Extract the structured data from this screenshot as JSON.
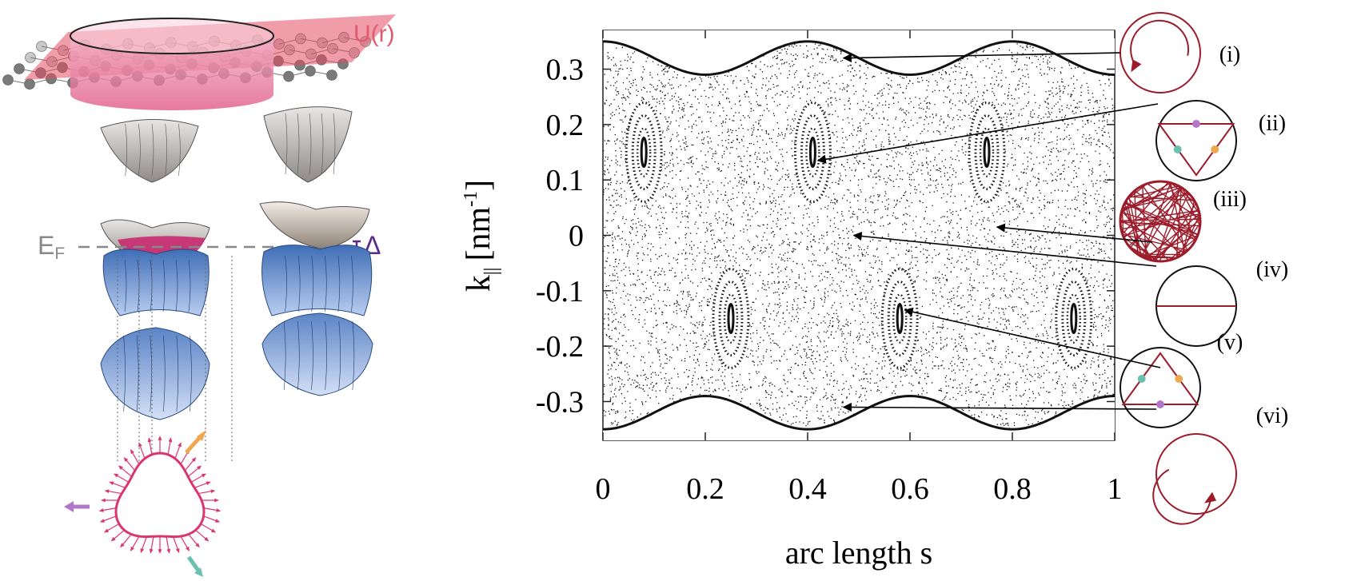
{
  "left_panel": {
    "potential_label": "U(r)",
    "fermi_label": "E",
    "fermi_subscript": "F",
    "gap_label": "Δ"
  },
  "chart_data": {
    "type": "scatter",
    "description_kind": "poincare-section",
    "xlabel": "arc length s",
    "ylabel_main": "k",
    "ylabel_sub": "||",
    "ylabel_unit": "[nm",
    "ylabel_exp": "-1",
    "ylabel_close": "]",
    "xlim": [
      0,
      1
    ],
    "ylim": [
      -0.37,
      0.37
    ],
    "x_ticks": [
      {
        "value": 0,
        "label": "0"
      },
      {
        "value": 0.2,
        "label": "0.2"
      },
      {
        "value": 0.4,
        "label": "0.4"
      },
      {
        "value": 0.6,
        "label": "0.6"
      },
      {
        "value": 0.8,
        "label": "0.8"
      },
      {
        "value": 1,
        "label": "1"
      }
    ],
    "y_ticks": [
      {
        "value": 0.3,
        "label": "0.3"
      },
      {
        "value": 0.2,
        "label": "0.2"
      },
      {
        "value": 0.1,
        "label": "0.1"
      },
      {
        "value": 0,
        "label": "0"
      },
      {
        "value": -0.1,
        "label": "-0.1"
      },
      {
        "value": -0.2,
        "label": "-0.2"
      },
      {
        "value": -0.3,
        "label": "-0.3"
      }
    ],
    "upper_boundary": {
      "mean": 0.32,
      "amplitude": 0.03,
      "periods": 2.5,
      "phase_max_at": 0.0
    },
    "lower_boundary": {
      "mean": -0.32,
      "amplitude": 0.03,
      "periods": 2.5,
      "phase_max_at": 0.0
    },
    "islands_upper": [
      0.08,
      0.41,
      0.75
    ],
    "islands_lower": [
      0.25,
      0.58,
      0.92
    ],
    "island_center_k_upper": 0.15,
    "island_center_k_lower": -0.15
  },
  "orbit_insets": [
    {
      "label": "(i)",
      "kind": "whispering-ccw"
    },
    {
      "label": "(ii)",
      "kind": "triangle-a"
    },
    {
      "label": "(iii)",
      "kind": "chaotic"
    },
    {
      "label": "(iv)",
      "kind": "diameter"
    },
    {
      "label": "(v)",
      "kind": "triangle-b"
    },
    {
      "label": "(vi)",
      "kind": "whispering-cw"
    }
  ],
  "colors": {
    "orbit": "#9b1c2a",
    "pink": "#d9366e",
    "lavender": "#b078c8",
    "teal": "#6cc0b0",
    "orange": "#f0a850",
    "blue": "#7a9fd8",
    "gray_band": "#a9a4a2",
    "fermi": "#888888",
    "gap": "#5a2a8a"
  }
}
